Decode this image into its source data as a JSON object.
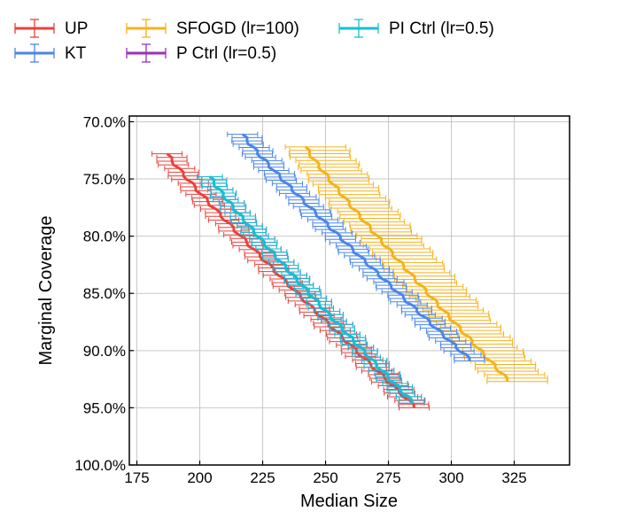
{
  "chart_data": {
    "type": "line",
    "xlabel": "Median Size",
    "ylabel": "Marginal Coverage",
    "xlim": [
      172,
      347
    ],
    "ylim": [
      1.0,
      0.695
    ],
    "y_inverted": true,
    "grid": true,
    "legend_position": "top-left, outside plot",
    "x_ticks": [
      175,
      200,
      225,
      250,
      275,
      300,
      325
    ],
    "x_tick_labels": [
      "175",
      "200",
      "225",
      "250",
      "275",
      "300",
      "325"
    ],
    "y_ticks": [
      0.7,
      0.75,
      0.8,
      0.85,
      0.9,
      0.95,
      1.0
    ],
    "y_tick_labels": [
      "70.0%",
      "75.0%",
      "80.0%",
      "85.0%",
      "90.0%",
      "95.0%",
      "100.0%"
    ],
    "series": [
      {
        "name": "UP",
        "color": "#e8413a",
        "x_start": 187,
        "x_end": 286,
        "cov_start": 0.728,
        "cov_end": 0.95,
        "err_minus": 6,
        "err_plus": 6
      },
      {
        "name": "KT",
        "color": "#4a86e8",
        "x_start": 217,
        "x_end": 308,
        "cov_start": 0.711,
        "cov_end": 0.909,
        "err_minus": 6,
        "err_plus": 6
      },
      {
        "name": "SFOGD (lr=100)",
        "color": "#f5b21b",
        "x_start": 242,
        "x_end": 323,
        "cov_start": 0.722,
        "cov_end": 0.927,
        "err_minus": 8,
        "err_plus": 16
      },
      {
        "name": "P Ctrl (lr=0.5)",
        "color": "#9b30b8",
        "x_start": 204,
        "x_end": 285,
        "cov_start": 0.748,
        "cov_end": 0.946,
        "err_minus": 5,
        "err_plus": 5
      },
      {
        "name": "PI Ctrl (lr=0.5)",
        "color": "#17bfd2",
        "x_start": 204,
        "x_end": 285,
        "cov_start": 0.748,
        "cov_end": 0.946,
        "err_minus": 5,
        "err_plus": 5
      }
    ]
  }
}
